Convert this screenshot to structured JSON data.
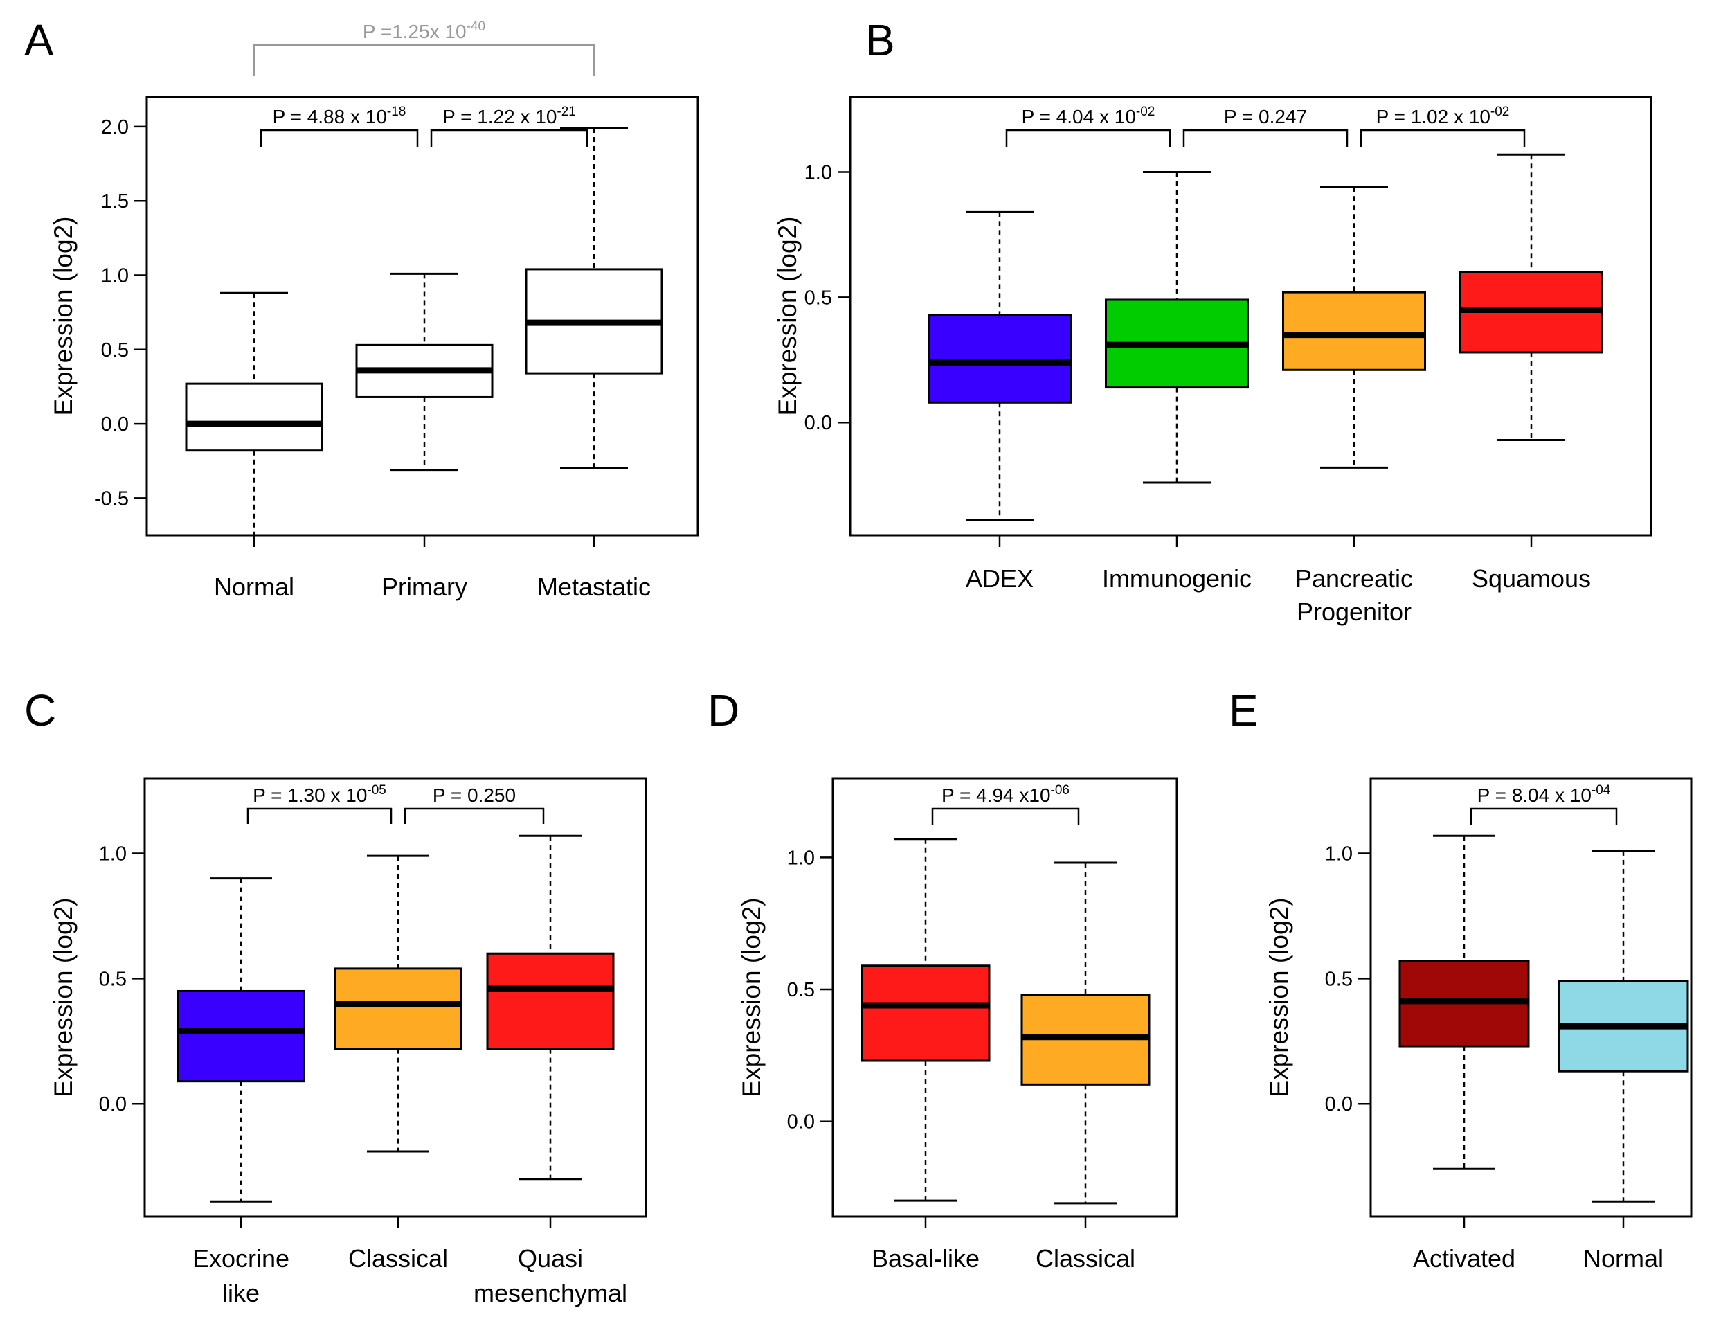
{
  "chart_data": [
    {
      "panel": "A",
      "type": "box",
      "ylabel": "Expression (log2)",
      "ylim": [
        -0.75,
        2.2
      ],
      "ticks": [
        -0.5,
        0.0,
        0.5,
        1.0,
        1.5,
        2.0
      ],
      "tick_labels": [
        "-0.5",
        "0.0",
        "0.5",
        "1.0",
        "1.5",
        "2.0"
      ],
      "categories": [
        [
          "Normal"
        ],
        [
          "Primary"
        ],
        [
          "Metastatic"
        ]
      ],
      "boxes": [
        {
          "whisker_low": -0.75,
          "q1": -0.18,
          "median": 0.0,
          "q3": 0.27,
          "whisker_high": 0.88,
          "color": "#ffffff"
        },
        {
          "whisker_low": -0.31,
          "q1": 0.18,
          "median": 0.36,
          "q3": 0.53,
          "whisker_high": 1.01,
          "color": "#ffffff"
        },
        {
          "whisker_low": -0.3,
          "q1": 0.34,
          "median": 0.68,
          "q3": 1.04,
          "whisker_high": 1.99,
          "color": "#ffffff"
        }
      ],
      "comparisons": [
        {
          "from": 0,
          "to": 1,
          "label": "P = 4.88 x 10",
          "exp": "-18",
          "gray": false
        },
        {
          "from": 1,
          "to": 2,
          "label": "P = 1.22 x 10",
          "exp": "-21",
          "gray": false
        },
        {
          "from": 0,
          "to": 2,
          "label": "P =1.25x 10",
          "exp": "-40",
          "gray": true
        }
      ]
    },
    {
      "panel": "B",
      "type": "box",
      "ylabel": "Expression (log2)",
      "ylim": [
        -0.45,
        1.3
      ],
      "ticks": [
        0.0,
        0.5,
        1.0
      ],
      "tick_labels": [
        "0.0",
        "0.5",
        "1.0"
      ],
      "categories": [
        [
          "ADEX"
        ],
        [
          "Immunogenic"
        ],
        [
          "Pancreatic",
          "Progenitor"
        ],
        [
          "Squamous"
        ]
      ],
      "boxes": [
        {
          "whisker_low": -0.39,
          "q1": 0.08,
          "median": 0.24,
          "q3": 0.43,
          "whisker_high": 0.84,
          "color": "#3a00ff"
        },
        {
          "whisker_low": -0.24,
          "q1": 0.14,
          "median": 0.31,
          "q3": 0.49,
          "whisker_high": 1.0,
          "color": "#00cc00"
        },
        {
          "whisker_low": -0.18,
          "q1": 0.21,
          "median": 0.35,
          "q3": 0.52,
          "whisker_high": 0.94,
          "color": "#ffaa22"
        },
        {
          "whisker_low": -0.07,
          "q1": 0.28,
          "median": 0.45,
          "q3": 0.6,
          "whisker_high": 1.07,
          "color": "#ff1a1a"
        }
      ],
      "comparisons": [
        {
          "from": 0,
          "to": 1,
          "label": "P = 4.04 x 10",
          "exp": "-02",
          "gray": false
        },
        {
          "from": 1,
          "to": 2,
          "label": "P = 0.247",
          "exp": "",
          "gray": false
        },
        {
          "from": 2,
          "to": 3,
          "label": "P = 1.02 x 10",
          "exp": "-02",
          "gray": false
        }
      ]
    },
    {
      "panel": "C",
      "type": "box",
      "ylabel": "Expression (log2)",
      "ylim": [
        -0.45,
        1.3
      ],
      "ticks": [
        0.0,
        0.5,
        1.0
      ],
      "tick_labels": [
        "0.0",
        "0.5",
        "1.0"
      ],
      "categories": [
        [
          "Exocrine",
          "like"
        ],
        [
          "Classical"
        ],
        [
          "Quasi",
          "mesenchymal"
        ]
      ],
      "boxes": [
        {
          "whisker_low": -0.39,
          "q1": 0.09,
          "median": 0.29,
          "q3": 0.45,
          "whisker_high": 0.9,
          "color": "#3a00ff"
        },
        {
          "whisker_low": -0.19,
          "q1": 0.22,
          "median": 0.4,
          "q3": 0.54,
          "whisker_high": 0.99,
          "color": "#ffaa22"
        },
        {
          "whisker_low": -0.3,
          "q1": 0.22,
          "median": 0.46,
          "q3": 0.6,
          "whisker_high": 1.07,
          "color": "#ff1a1a"
        }
      ],
      "comparisons": [
        {
          "from": 0,
          "to": 1,
          "label": "P = 1.30 x 10",
          "exp": "-05",
          "gray": false
        },
        {
          "from": 1,
          "to": 2,
          "label": "P = 0.250",
          "exp": "",
          "gray": false
        }
      ]
    },
    {
      "panel": "D",
      "type": "box",
      "ylabel": "Expression (log2)",
      "ylim": [
        -0.36,
        1.3
      ],
      "ticks": [
        0.0,
        0.5,
        1.0
      ],
      "tick_labels": [
        "0.0",
        "0.5",
        "1.0"
      ],
      "categories": [
        [
          "Basal-like"
        ],
        [
          "Classical"
        ]
      ],
      "boxes": [
        {
          "whisker_low": -0.3,
          "q1": 0.23,
          "median": 0.44,
          "q3": 0.59,
          "whisker_high": 1.07,
          "color": "#ff1a1a"
        },
        {
          "whisker_low": -0.31,
          "q1": 0.14,
          "median": 0.32,
          "q3": 0.48,
          "whisker_high": 0.98,
          "color": "#ffaa22"
        }
      ],
      "comparisons": [
        {
          "from": 0,
          "to": 1,
          "label": "P = 4.94 x10",
          "exp": "-06",
          "gray": false
        }
      ]
    },
    {
      "panel": "E",
      "type": "box",
      "ylabel": "Expression (log2)",
      "ylim": [
        -0.45,
        1.3
      ],
      "ticks": [
        0.0,
        0.5,
        1.0
      ],
      "tick_labels": [
        "0.0",
        "0.5",
        "1.0"
      ],
      "categories": [
        [
          "Activated"
        ],
        [
          "Normal"
        ]
      ],
      "boxes": [
        {
          "whisker_low": -0.26,
          "q1": 0.23,
          "median": 0.41,
          "q3": 0.57,
          "whisker_high": 1.07,
          "color": "#a00808"
        },
        {
          "whisker_low": -0.39,
          "q1": 0.13,
          "median": 0.31,
          "q3": 0.49,
          "whisker_high": 1.01,
          "color": "#8fd8e6"
        }
      ],
      "comparisons": [
        {
          "from": 0,
          "to": 1,
          "label": "P = 8.04 x 10",
          "exp": "-04",
          "gray": false
        }
      ]
    }
  ]
}
